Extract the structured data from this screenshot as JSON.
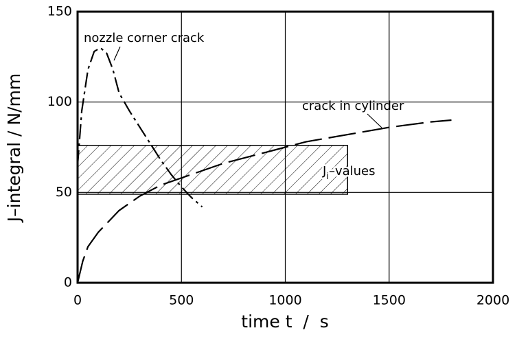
{
  "chart_data": {
    "type": "line",
    "xlabel": "time t  /  s",
    "ylabel": "J–integral / N/mm",
    "xlim": [
      0,
      2000
    ],
    "xticks": [
      0,
      500,
      1000,
      1500,
      2000
    ],
    "ylim": [
      0,
      150
    ],
    "yticks": [
      0,
      50,
      100,
      150
    ],
    "grid": true,
    "series": [
      {
        "name": "nozzle corner crack",
        "color": "#000000",
        "style": "dashdot",
        "x": [
          0,
          20,
          50,
          80,
          110,
          140,
          170,
          200,
          250,
          300,
          350,
          400,
          450,
          500,
          550,
          600
        ],
        "values": [
          65,
          95,
          118,
          128,
          130,
          127,
          118,
          105,
          95,
          86,
          77,
          68,
          60,
          53,
          47,
          42
        ]
      },
      {
        "name": "crack in cylinder",
        "color": "#000000",
        "style": "dashed",
        "x": [
          0,
          25,
          50,
          100,
          150,
          200,
          250,
          300,
          350,
          400,
          500,
          600,
          700,
          800,
          900,
          1000,
          1100,
          1200,
          1300,
          1400,
          1500,
          1600,
          1700,
          1800
        ],
        "values": [
          0,
          12,
          20,
          28,
          34,
          40,
          44,
          48,
          51,
          54,
          58,
          62,
          66,
          69,
          72,
          75,
          78,
          80,
          82,
          84,
          86,
          87.5,
          89,
          90
        ]
      }
    ],
    "band": {
      "label": "J",
      "label_sub": "i",
      "label_rest": "–values",
      "x": [
        0,
        1300
      ],
      "y": [
        49,
        76
      ]
    }
  }
}
